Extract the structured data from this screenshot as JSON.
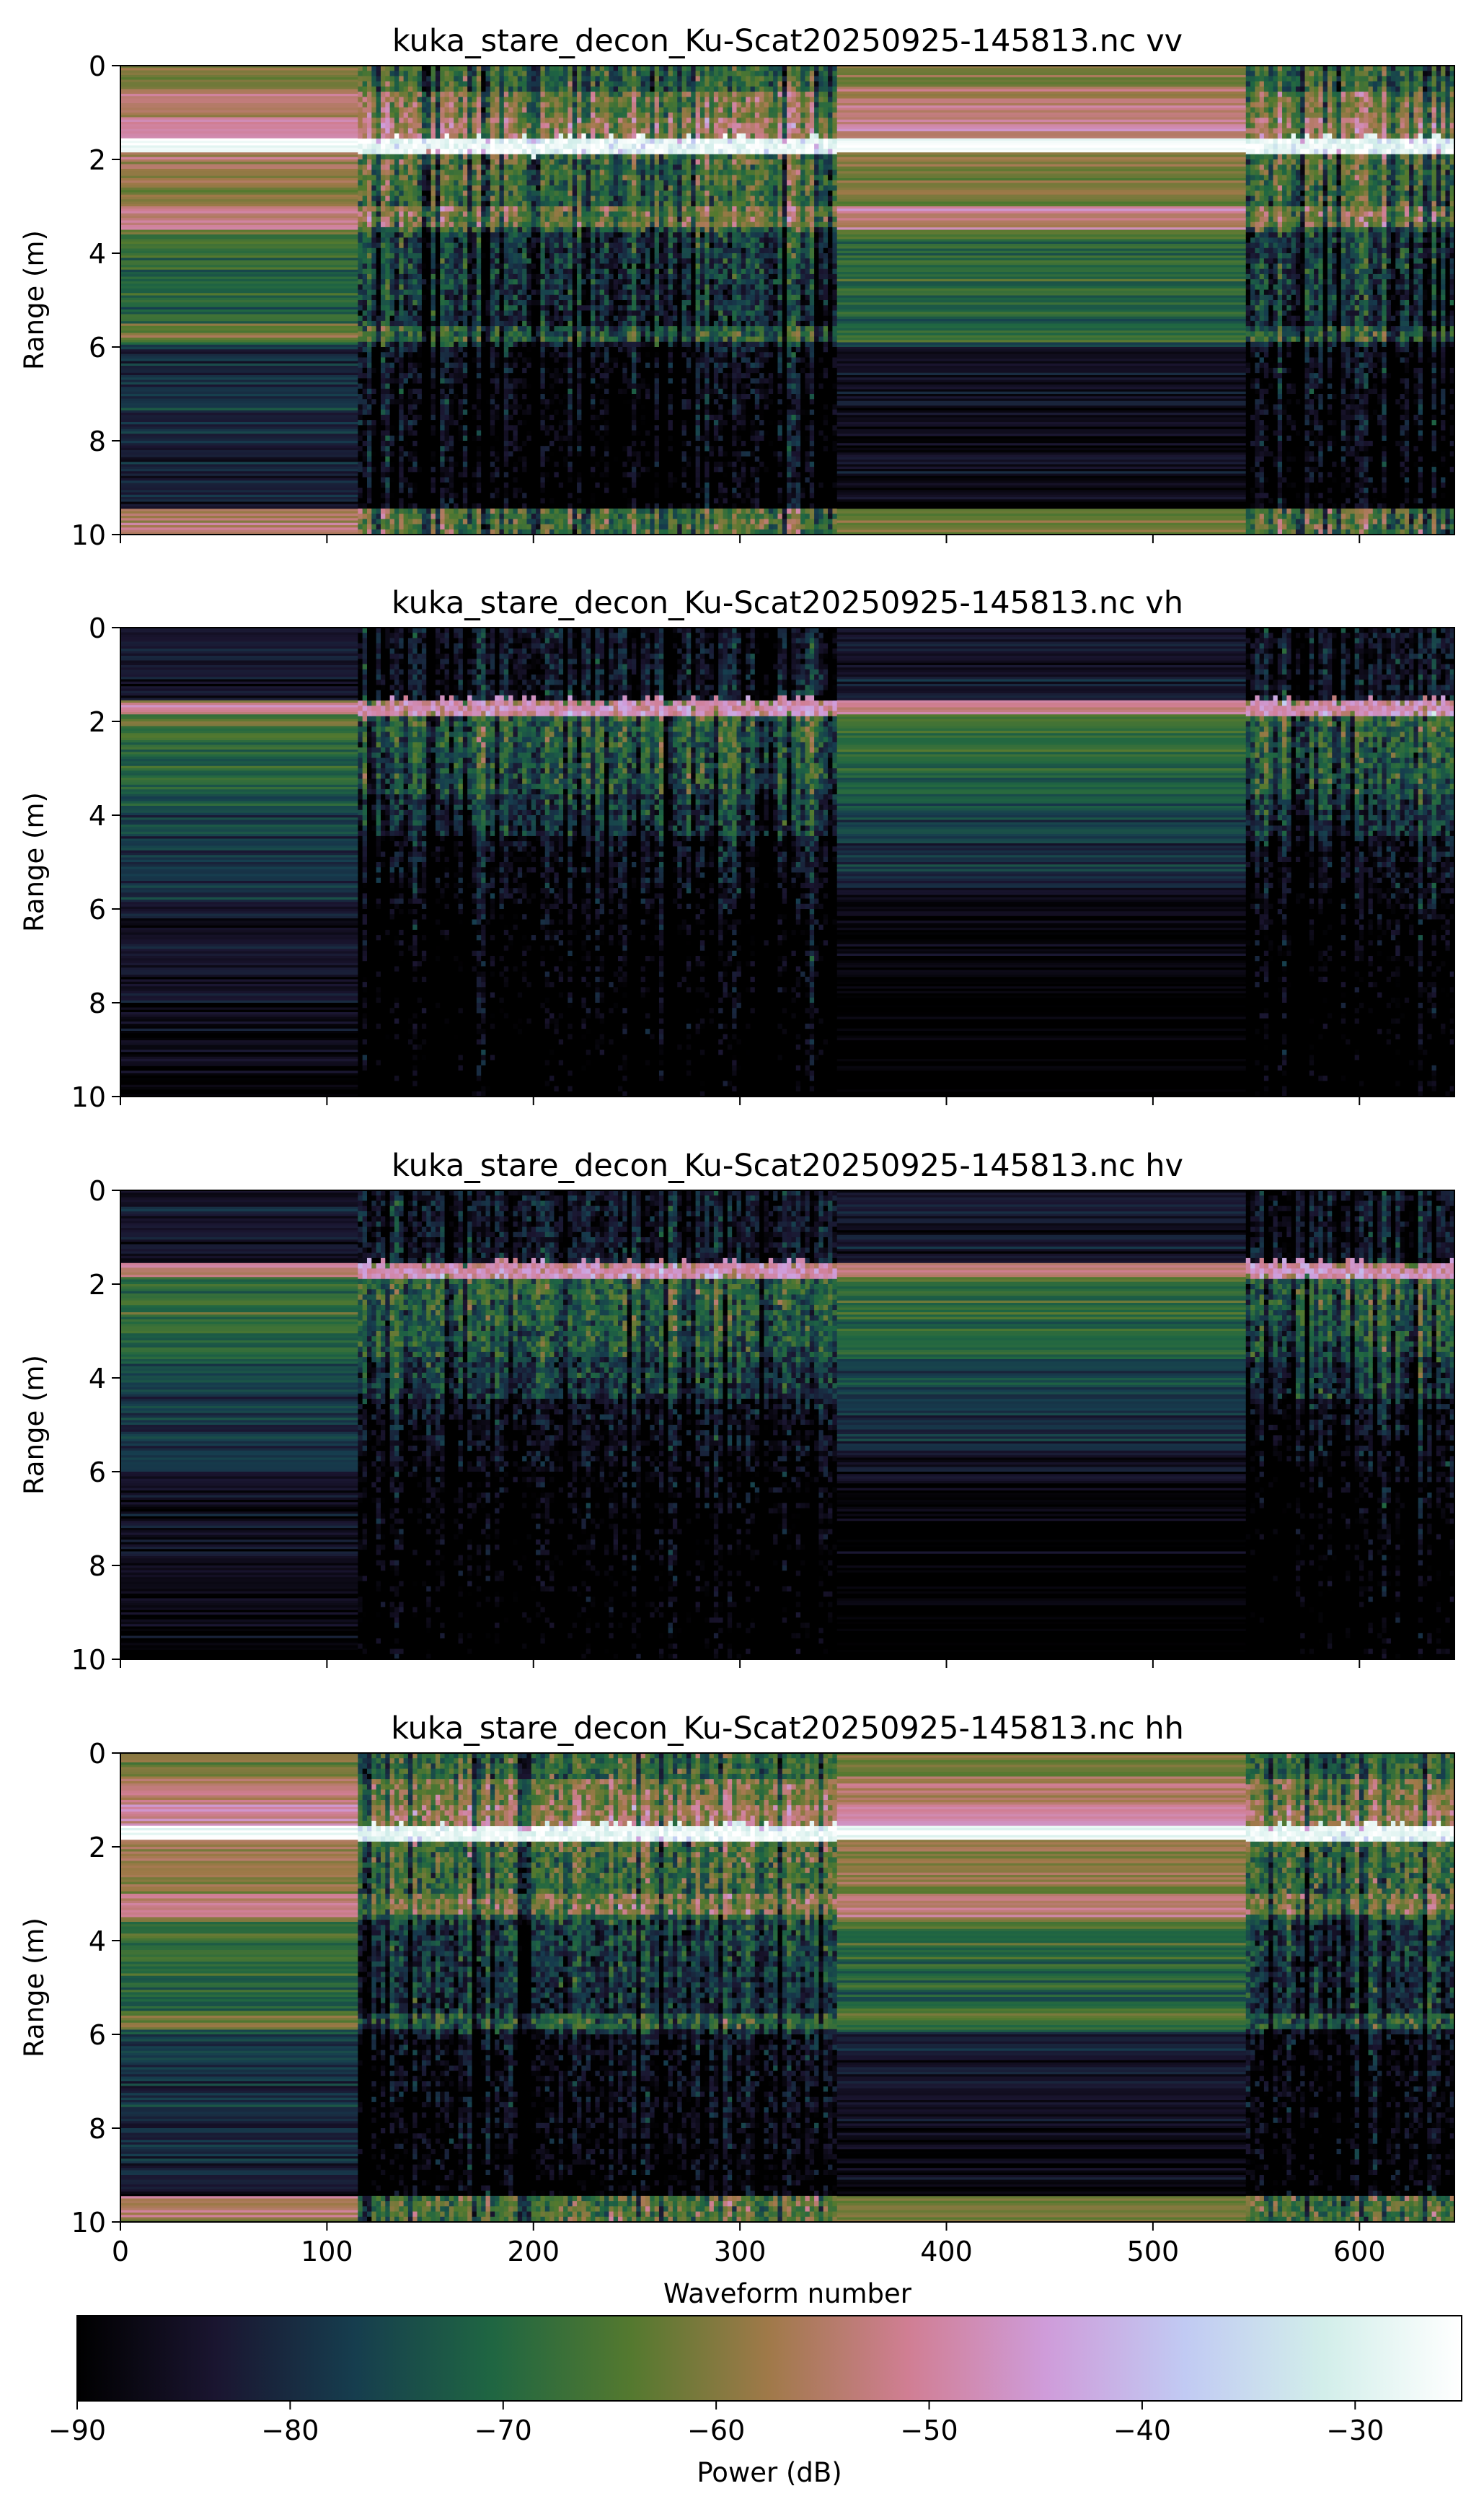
{
  "chart_data": [
    {
      "type": "heatmap",
      "title": "kuka_stare_decon_Ku-Scat20250925-145813.nc vv",
      "ylabel": "Range (m)",
      "xlabel": "",
      "xlim": [
        0,
        646
      ],
      "ylim": [
        0,
        10
      ],
      "yticks": [
        "0",
        "2",
        "4",
        "6",
        "8",
        "10"
      ],
      "xticks": [
        0,
        100,
        200,
        300,
        400,
        500,
        600
      ],
      "show_xtick_labels": false,
      "surface_range_m": 1.7,
      "surface_power_dB": -27,
      "bottom_layer_range_m": 9.7,
      "bottom_layer_power_dB": -55
    },
    {
      "type": "heatmap",
      "title": "kuka_stare_decon_Ku-Scat20250925-145813.nc vh",
      "ylabel": "Range (m)",
      "xlabel": "",
      "xlim": [
        0,
        646
      ],
      "ylim": [
        0,
        10
      ],
      "yticks": [
        "0",
        "2",
        "4",
        "6",
        "8",
        "10"
      ],
      "xticks": [
        0,
        100,
        200,
        300,
        400,
        500,
        600
      ],
      "show_xtick_labels": false,
      "surface_range_m": 1.7,
      "surface_power_dB": -52
    },
    {
      "type": "heatmap",
      "title": "kuka_stare_decon_Ku-Scat20250925-145813.nc hv",
      "ylabel": "Range (m)",
      "xlabel": "",
      "xlim": [
        0,
        646
      ],
      "ylim": [
        0,
        10
      ],
      "yticks": [
        "0",
        "2",
        "4",
        "6",
        "8",
        "10"
      ],
      "xticks": [
        0,
        100,
        200,
        300,
        400,
        500,
        600
      ],
      "show_xtick_labels": false,
      "surface_range_m": 1.7,
      "surface_power_dB": -52
    },
    {
      "type": "heatmap",
      "title": "kuka_stare_decon_Ku-Scat20250925-145813.nc hh",
      "ylabel": "Range (m)",
      "xlabel": "Waveform number",
      "xlim": [
        0,
        646
      ],
      "ylim": [
        0,
        10
      ],
      "yticks": [
        "0",
        "2",
        "4",
        "6",
        "8",
        "10"
      ],
      "xticks": [
        0,
        100,
        200,
        300,
        400,
        500,
        600
      ],
      "xtick_labels": [
        "0",
        "100",
        "200",
        "300",
        "400",
        "500",
        "600"
      ],
      "show_xtick_labels": true,
      "surface_range_m": 1.7,
      "surface_power_dB": -26,
      "bottom_layer_range_m": 9.7,
      "bottom_layer_power_dB": -55
    }
  ],
  "colorbar": {
    "label": "Power (dB)",
    "range": [
      -90,
      -25
    ],
    "colormap": "cubehelix",
    "ticks": [
      -90,
      -80,
      -70,
      -60,
      -50,
      -40,
      -30
    ],
    "tick_labels": [
      "−90",
      "−80",
      "−70",
      "−60",
      "−50",
      "−40",
      "−30"
    ],
    "colors": [
      "#000000",
      "#1a1530",
      "#163d4e",
      "#1f6642",
      "#54792f",
      "#a07949",
      "#d07e93",
      "#cf9cda",
      "#c1caf3",
      "#d2eeea",
      "#ffffff"
    ]
  },
  "segments": [
    {
      "x_range": [
        0,
        115
      ],
      "kind": "static"
    },
    {
      "x_range": [
        115,
        347
      ],
      "kind": "variable"
    },
    {
      "x_range": [
        347,
        545
      ],
      "kind": "static"
    },
    {
      "x_range": [
        545,
        646
      ],
      "kind": "variable"
    }
  ]
}
